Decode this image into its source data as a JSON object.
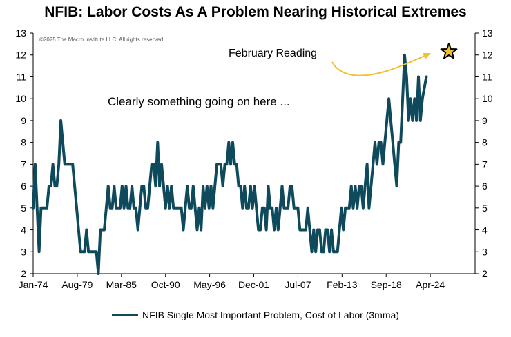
{
  "colors": {
    "series": "#0e4a5c",
    "arrow": "#f2c12e",
    "star_fill": "#f2c12e",
    "star_stroke": "#000000"
  },
  "annotations": {
    "copyright": "©2025 The Macro Institute LLC. All rights reserved.",
    "february": "February Reading",
    "clearly": "Clearly something going on here ..."
  },
  "chart_data": {
    "type": "line",
    "title": "NFIB: Labor Costs As A Problem Nearing Historical Extremes",
    "xlabel": "",
    "ylabel": "",
    "x_start": "Jan-74",
    "x_step": "quarter",
    "xlim": [
      "Jan-74",
      "Dec-29"
    ],
    "x_ticks": [
      "Jan-74",
      "Aug-79",
      "Mar-85",
      "Oct-90",
      "May-96",
      "Dec-01",
      "Jul-07",
      "Feb-13",
      "Sep-18",
      "Apr-24"
    ],
    "ylim": [
      2,
      13
    ],
    "y_ticks": [
      2,
      3,
      4,
      5,
      6,
      7,
      8,
      9,
      10,
      11,
      12,
      13
    ],
    "left_axis": true,
    "right_axis": true,
    "grid": false,
    "legend": "bottom-center",
    "series": [
      {
        "name": "NFIB Single Most Important Problem, Cost of Labor (3mma)",
        "values": [
          5.0,
          7.0,
          5.0,
          3.0,
          5.0,
          5.0,
          5.0,
          5.0,
          6.0,
          6.0,
          7.0,
          6.0,
          6.0,
          7.0,
          9.0,
          8.0,
          7.0,
          7.0,
          7.0,
          7.0,
          7.0,
          6.0,
          5.0,
          4.0,
          3.0,
          3.0,
          3.0,
          4.0,
          3.0,
          3.0,
          3.0,
          3.0,
          3.0,
          2.0,
          4.0,
          4.0,
          4.0,
          5.0,
          6.0,
          5.0,
          5.0,
          6.0,
          5.0,
          5.0,
          5.0,
          6.0,
          5.0,
          6.0,
          5.0,
          5.0,
          6.0,
          5.0,
          5.0,
          4.0,
          5.0,
          6.0,
          6.0,
          5.0,
          5.0,
          6.0,
          7.0,
          7.0,
          6.0,
          8.0,
          6.0,
          7.0,
          6.0,
          5.0,
          6.0,
          5.0,
          6.0,
          5.0,
          5.0,
          5.0,
          5.0,
          5.0,
          4.0,
          5.0,
          6.0,
          5.0,
          5.0,
          6.0,
          5.0,
          4.0,
          5.0,
          4.0,
          6.0,
          5.0,
          6.0,
          5.0,
          6.0,
          5.0,
          6.0,
          7.0,
          7.0,
          7.0,
          6.0,
          7.0,
          7.0,
          8.0,
          7.0,
          8.0,
          7.0,
          7.0,
          6.0,
          6.0,
          5.0,
          6.0,
          5.0,
          5.0,
          6.0,
          5.0,
          6.0,
          5.0,
          4.0,
          4.0,
          5.0,
          5.0,
          4.0,
          6.0,
          5.0,
          5.0,
          4.0,
          5.0,
          4.0,
          5.0,
          6.0,
          5.0,
          5.0,
          5.0,
          6.0,
          6.0,
          5.0,
          5.0,
          5.0,
          4.0,
          4.0,
          4.0,
          4.0,
          5.0,
          4.0,
          3.0,
          4.0,
          3.0,
          4.0,
          4.0,
          3.0,
          3.0,
          4.0,
          4.0,
          3.0,
          4.0,
          3.0,
          3.0,
          3.0,
          4.0,
          5.0,
          4.0,
          5.0,
          5.0,
          5.0,
          6.0,
          5.0,
          6.0,
          5.0,
          6.0,
          6.0,
          5.0,
          6.0,
          7.0,
          5.0,
          6.0,
          7.0,
          8.0,
          7.0,
          8.0,
          8.0,
          7.0,
          8.0,
          9.0,
          10.0,
          9.0,
          8.0,
          7.0,
          6.0,
          8.0,
          8.0,
          10.0,
          12.0,
          11.0,
          9.0,
          10.0,
          9.0,
          10.0,
          9.0,
          11.0,
          9.0,
          10.0,
          10.5,
          11.0
        ]
      }
    ]
  }
}
